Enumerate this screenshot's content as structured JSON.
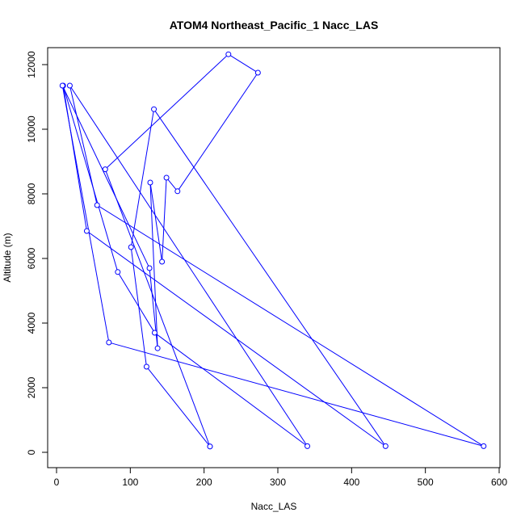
{
  "chart_data": {
    "type": "line",
    "title": "ATOM4 Northeast_Pacific_1 Nacc_LAS",
    "xlabel": "Nacc_LAS",
    "ylabel": "Altitude (m)",
    "xlim": [
      0,
      600
    ],
    "ylim": [
      0,
      12000
    ],
    "x_ticks": [
      0,
      100,
      200,
      300,
      400,
      500,
      600
    ],
    "y_ticks": [
      0,
      2000,
      4000,
      6000,
      8000,
      10000,
      12000
    ],
    "x_tick_labels": [
      "0",
      "100",
      "200",
      "300",
      "400",
      "500",
      "600"
    ],
    "y_tick_labels": [
      "0",
      "2000",
      "4000",
      "6000",
      "8000",
      "10000",
      "12000"
    ],
    "grid": false,
    "line_color": "#0000ff",
    "series": [
      {
        "points": [
          {
            "x": 208,
            "y": 180
          },
          {
            "x": 122,
            "y": 2650
          },
          {
            "x": 101,
            "y": 6350
          },
          {
            "x": 132,
            "y": 10620
          },
          {
            "x": 446,
            "y": 190
          },
          {
            "x": 41,
            "y": 6850
          },
          {
            "x": 9,
            "y": 11350
          },
          {
            "x": 83,
            "y": 5580
          },
          {
            "x": 133,
            "y": 3700
          },
          {
            "x": 340,
            "y": 190
          },
          {
            "x": 18,
            "y": 11350
          },
          {
            "x": 55,
            "y": 7650
          },
          {
            "x": 579,
            "y": 190
          },
          {
            "x": 71,
            "y": 3400
          },
          {
            "x": 8,
            "y": 11350
          },
          {
            "x": 126,
            "y": 5700
          },
          {
            "x": 137,
            "y": 3220
          },
          {
            "x": 127,
            "y": 8350
          },
          {
            "x": 143,
            "y": 5900
          },
          {
            "x": 149,
            "y": 8500
          },
          {
            "x": 164,
            "y": 8080
          },
          {
            "x": 273,
            "y": 11750
          },
          {
            "x": 233,
            "y": 12320
          },
          {
            "x": 66,
            "y": 8760
          },
          {
            "x": 208,
            "y": 180
          }
        ]
      }
    ]
  }
}
